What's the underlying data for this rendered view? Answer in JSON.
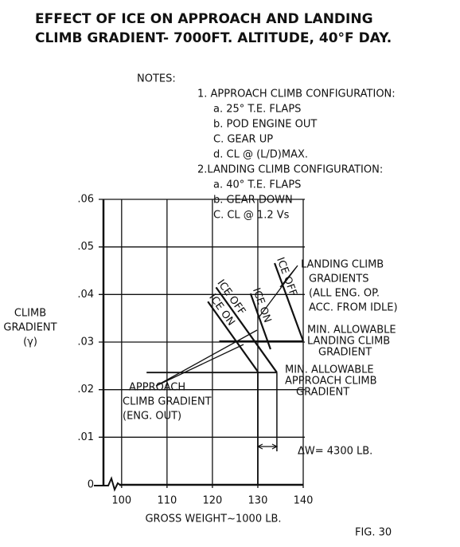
{
  "chart_data": {
    "type": "line",
    "title": [
      "EFFECT OF ICE ON APPROACH AND LANDING",
      "CLIMB GRADIENT- 7000FT. ALTITUDE, 40°F DAY."
    ],
    "notes": {
      "heading": "NOTES:",
      "items": [
        {
          "text": "1. APPROACH CLIMB CONFIGURATION:",
          "sub": [
            "a. 25° T.E. FLAPS",
            "b. POD ENGINE OUT",
            "C. GEAR UP",
            "d. CL @ (L/D)MAX."
          ]
        },
        {
          "text": "2.LANDING CLIMB CONFIGURATION:",
          "sub": [
            "a. 40° T.E. FLAPS",
            "b. GEAR DOWN",
            "C. CL @ 1.2 Vs"
          ]
        }
      ]
    },
    "x_label": "GROSS WEIGHT~1000 LB.",
    "y_label": [
      "CLIMB",
      "GRADIENT",
      "(γ)"
    ],
    "xlim": [
      96,
      140
    ],
    "ylim": [
      0,
      0.06
    ],
    "xticks": [
      100,
      110,
      120,
      130,
      140
    ],
    "yticks": [
      0,
      {
        "value": 0.01,
        "label": ".01"
      },
      {
        "value": 0.02,
        "label": ".02"
      },
      {
        "value": 0.03,
        "label": ".03"
      },
      {
        "value": 0.04,
        "label": ".04"
      },
      {
        "value": 0.05,
        "label": ".05"
      },
      {
        "value": 0.06,
        "label": ".06"
      }
    ],
    "grid": true,
    "series": [
      {
        "name": "ICE ON",
        "color": "#111111",
        "x": [
          119,
          130
        ],
        "values": [
          0.0385,
          0.0238
        ]
      },
      {
        "name": "ICE OFF",
        "color": "#111111",
        "x": [
          120.8,
          134.2
        ],
        "values": [
          0.0415,
          0.0236
        ]
      },
      {
        "name": "ICE ON",
        "color": "#111111",
        "x": [
          128.4,
          132.8
        ],
        "values": [
          0.0402,
          0.0285
        ]
      },
      {
        "name": "ICE OFF",
        "color": "#111111",
        "x": [
          133.7,
          140
        ],
        "values": [
          0.0466,
          0.0302
        ]
      }
    ],
    "reference_lines": [
      {
        "value": 0.0302,
        "x": [
          121.5,
          140
        ],
        "lines": [
          "MIN. ALLOWABLE",
          "LANDING CLIMB",
          "GRADIENT"
        ]
      },
      {
        "value": 0.0236,
        "x": [
          105.5,
          134.2
        ],
        "lines": [
          "MIN. ALLOWABLE",
          "APPROACH CLIMB",
          "GRADIENT"
        ]
      }
    ],
    "annotations": [
      {
        "lines": [
          "LANDING CLIMB",
          "GRADIENTS",
          "(ALL ENG. OP.",
          "ACC. FROM IDLE)"
        ]
      },
      {
        "lines": [
          "APPROACH",
          "CLIMB GRADIENT",
          "(ENG. OUT)"
        ]
      }
    ],
    "delta_w": {
      "x": [
        130,
        134.2
      ],
      "label": "ΔW= 4300 LB."
    },
    "figure_label": "FIG. 30"
  }
}
